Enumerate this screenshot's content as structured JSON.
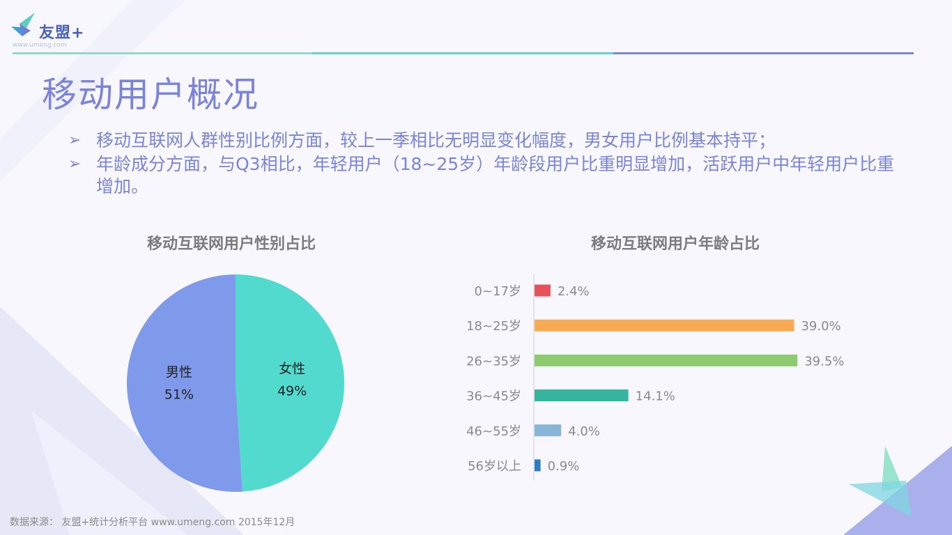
{
  "logo": {
    "name": "友盟",
    "plus": "+",
    "url": "www.umeng.com"
  },
  "colors": {
    "title": "#7b84d6",
    "header_line": [
      "#8fdbc8",
      "#62d4d0",
      "#7a87d8"
    ]
  },
  "page": {
    "title": "移动用户概况"
  },
  "bullets": [
    "移动互联网人群性别比例方面，较上一季相比无明显变化幅度，男女用户比例基本持平；",
    "年龄成分方面，与Q3相比，年轻用户（18~25岁）年龄段用户比重明显增加，活跃用户中年轻用户比重增加。"
  ],
  "chart_data": [
    {
      "type": "pie",
      "title": "移动互联网用户性别占比",
      "slices": [
        {
          "label": "女性",
          "value": 49,
          "display": "49%",
          "color": "#52dace"
        },
        {
          "label": "男性",
          "value": 51,
          "display": "51%",
          "color": "#7f9aea"
        }
      ]
    },
    {
      "type": "bar",
      "orientation": "horizontal",
      "title": "移动互联网用户年龄占比",
      "categories": [
        "0~17岁",
        "18~25岁",
        "26~35岁",
        "36~45岁",
        "46~55岁",
        "56岁以上"
      ],
      "values": [
        2.4,
        39.0,
        39.5,
        14.1,
        4.0,
        0.9
      ],
      "labels": [
        "2.4%",
        "39.0%",
        "39.5%",
        "14.1%",
        "4.0%",
        "0.9%"
      ],
      "colors": [
        "#e4525a",
        "#f9ab53",
        "#8ccb6e",
        "#36b59e",
        "#87b6d8",
        "#2d7cc4"
      ],
      "xlim": [
        0,
        40
      ],
      "grid": false
    }
  ],
  "footer": {
    "source": "数据来源：  友盟+统计分析平台 www.umeng.com 2015年12月"
  }
}
